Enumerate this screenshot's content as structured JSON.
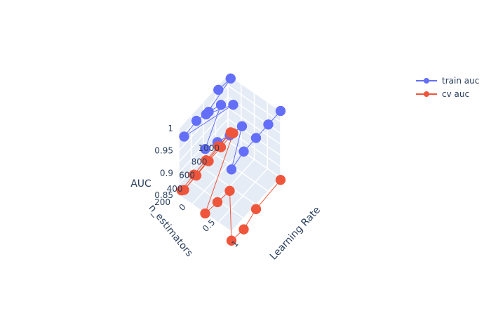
{
  "chart_data": {
    "type": "scatter3d",
    "xlabel": "Learning Rate",
    "ylabel": "n_estimators",
    "zlabel": "AUC",
    "x_ticks": [
      "0",
      "0.5",
      "1"
    ],
    "y_ticks": [
      "200",
      "400",
      "600",
      "800",
      "1000"
    ],
    "z_ticks": [
      "0.85",
      "0.9",
      "0.95",
      "1"
    ],
    "grid": true,
    "legend_position": "top-right",
    "series": [
      {
        "name": "train auc",
        "color": "#636efa",
        "mode": "lines+markers",
        "points": [
          {
            "lr": 0.05,
            "n": 800,
            "auc": 1.0
          },
          {
            "lr": 0.05,
            "n": 1000,
            "auc": 0.995
          },
          {
            "lr": 0.05,
            "n": 600,
            "auc": 0.975
          },
          {
            "lr": 0.1,
            "n": 1000,
            "auc": 0.94
          },
          {
            "lr": 0.1,
            "n": 200,
            "auc": 0.99
          },
          {
            "lr": 0.1,
            "n": 400,
            "auc": 0.995
          },
          {
            "lr": 0.1,
            "n": 600,
            "auc": 0.985
          },
          {
            "lr": 0.1,
            "n": 800,
            "auc": 0.97
          },
          {
            "lr": 0.5,
            "n": 200,
            "auc": 0.995
          },
          {
            "lr": 0.5,
            "n": 400,
            "auc": 0.98
          },
          {
            "lr": 0.5,
            "n": 600,
            "auc": 0.965
          },
          {
            "lr": 0.5,
            "n": 800,
            "auc": 0.955
          },
          {
            "lr": 1.0,
            "n": 200,
            "auc": 0.99
          },
          {
            "lr": 1.0,
            "n": 400,
            "auc": 1.0
          },
          {
            "lr": 1.0,
            "n": 600,
            "auc": 1.0
          },
          {
            "lr": 1.0,
            "n": 800,
            "auc": 1.0
          },
          {
            "lr": 1.0,
            "n": 1000,
            "auc": 1.0
          }
        ]
      },
      {
        "name": "cv auc",
        "color": "#ef553b",
        "mode": "lines+markers",
        "points": [
          {
            "lr": 0.05,
            "n": 200,
            "auc": 0.865
          },
          {
            "lr": 0.05,
            "n": 400,
            "auc": 0.87
          },
          {
            "lr": 0.05,
            "n": 600,
            "auc": 0.872
          },
          {
            "lr": 0.05,
            "n": 800,
            "auc": 0.873
          },
          {
            "lr": 0.05,
            "n": 1000,
            "auc": 0.874
          },
          {
            "lr": 0.1,
            "n": 200,
            "auc": 0.87
          },
          {
            "lr": 0.1,
            "n": 400,
            "auc": 0.872
          },
          {
            "lr": 0.1,
            "n": 600,
            "auc": 0.874
          },
          {
            "lr": 0.1,
            "n": 800,
            "auc": 0.875
          },
          {
            "lr": 0.1,
            "n": 1000,
            "auc": 0.876
          },
          {
            "lr": 0.5,
            "n": 200,
            "auc": 0.85
          },
          {
            "lr": 0.5,
            "n": 400,
            "auc": 0.845
          },
          {
            "lr": 0.5,
            "n": 600,
            "auc": 0.84
          },
          {
            "lr": 1.0,
            "n": 200,
            "auc": 0.83
          },
          {
            "lr": 1.0,
            "n": 400,
            "auc": 0.825
          },
          {
            "lr": 1.0,
            "n": 600,
            "auc": 0.84
          },
          {
            "lr": 1.0,
            "n": 1000,
            "auc": 0.845
          }
        ]
      }
    ]
  }
}
